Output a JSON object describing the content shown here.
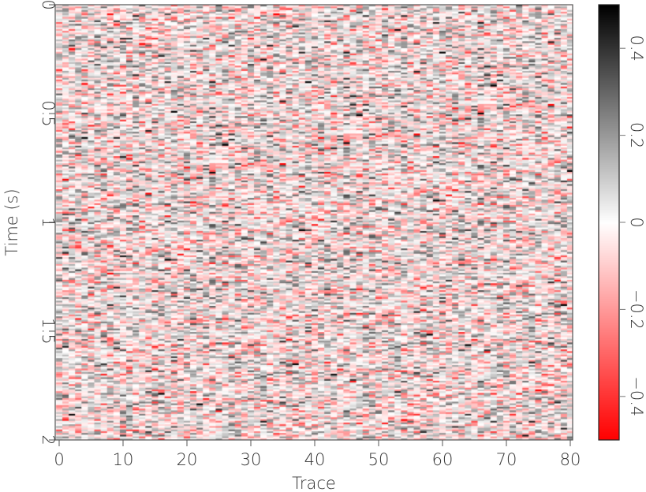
{
  "chart_data": {
    "type": "heatmap",
    "title": "",
    "xlabel": "Trace",
    "ylabel": "Time (s)",
    "xlim": [
      0,
      80
    ],
    "ylim": [
      2,
      0
    ],
    "x_ticks": [
      "0",
      "10",
      "20",
      "30",
      "40",
      "50",
      "60",
      "70",
      "80"
    ],
    "y_ticks": [
      "0",
      "0.5",
      "1",
      "1.5",
      "2"
    ],
    "colorbar": {
      "range": [
        -0.5,
        0.5
      ],
      "ticks": [
        "0.4",
        "0.2",
        "0",
        "−0.2",
        "−0.4"
      ],
      "tick_values": [
        0.4,
        0.2,
        0,
        -0.2,
        -0.4
      ],
      "colors": {
        "min": "#ff0000",
        "zero": "#ffffff",
        "max": "#000000"
      }
    },
    "content": "random noise",
    "grid": false
  }
}
